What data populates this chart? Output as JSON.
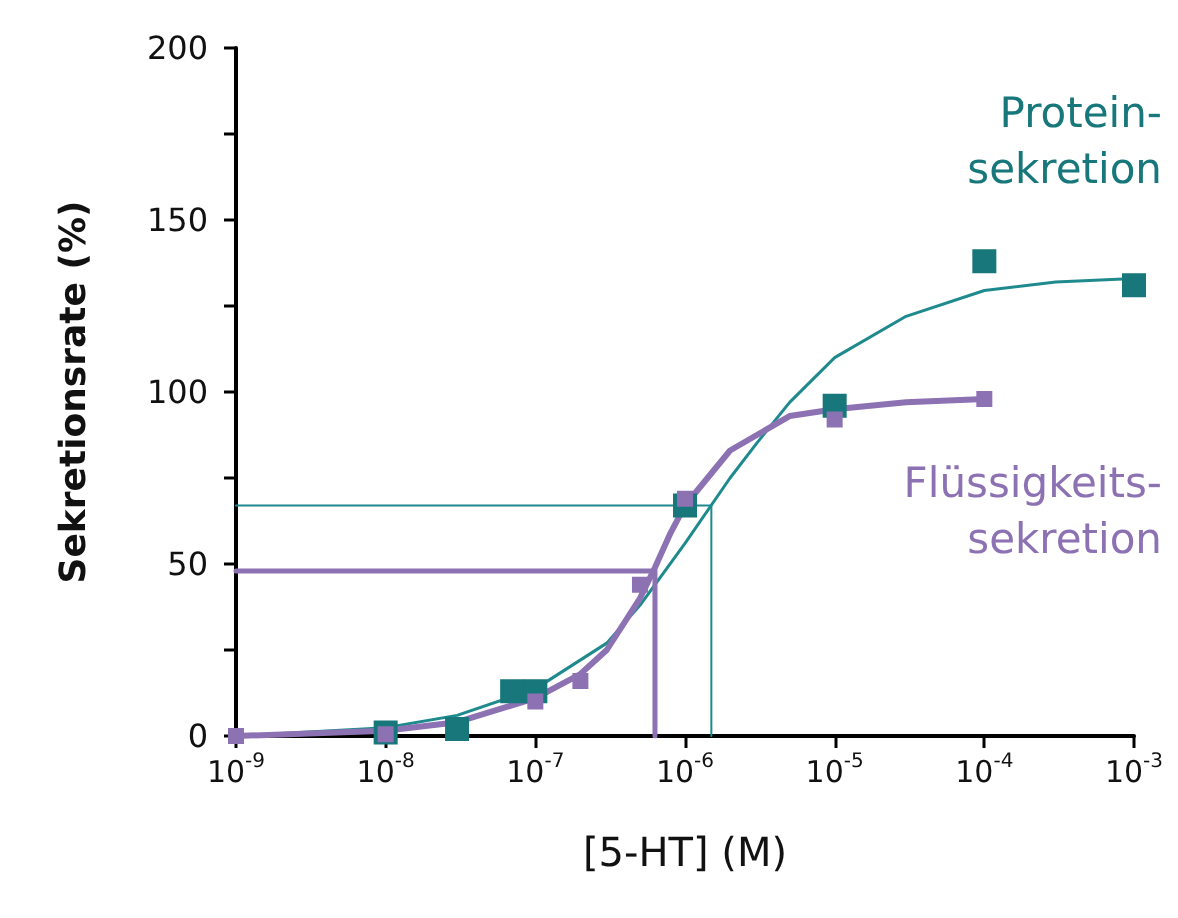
{
  "chart_data": {
    "type": "scatter",
    "xlabel": "[5-HT] (M)",
    "ylabel": "Sekretionsrate (%)",
    "log": "x",
    "grid": false,
    "legend": false,
    "xlim": [
      1e-09,
      0.001
    ],
    "xticks": [
      {
        "value": 1e-09,
        "label": "10$^{-9}$"
      },
      {
        "value": 1e-08,
        "label": "10$^{-8}$"
      },
      {
        "value": 1e-07,
        "label": "10$^{-7}$"
      },
      {
        "value": 1e-06,
        "label": "10$^{-6}$"
      },
      {
        "value": 1e-05,
        "label": "10$^{-5}$"
      },
      {
        "value": 0.0001,
        "label": "10$^{-4}$"
      },
      {
        "value": 0.001,
        "label": "10$^{-3}$"
      }
    ],
    "ylim": [
      0,
      200
    ],
    "yticks": [
      0,
      {
        "value": 25,
        "label": null
      },
      50,
      {
        "value": 75,
        "label": null
      },
      100,
      {
        "value": 125,
        "label": null
      },
      150,
      {
        "value": 175,
        "label": null
      },
      200
    ],
    "series": [
      {
        "name": "Protein-\nsekretion",
        "marker": "square",
        "color": "#17777b",
        "x": [
          1e-08,
          3e-08,
          7e-08,
          1e-07,
          1e-06,
          1e-05,
          0.0001,
          0.001
        ],
        "values": [
          1,
          2,
          13,
          13,
          67,
          96,
          138,
          131
        ]
      },
      {
        "type": "line",
        "marker": "none",
        "line_style": "solid",
        "color": "#1f8a8e",
        "x": [
          1e-09,
          1e-08,
          3e-08,
          1e-07,
          3e-07,
          5e-07,
          1e-06,
          2e-06,
          3e-06,
          5e-06,
          1e-05,
          3e-05,
          0.0001,
          0.0003,
          0.001
        ],
        "values": [
          0,
          2.4,
          6,
          13.7,
          27,
          38,
          56,
          75,
          85,
          97,
          110,
          122,
          129.5,
          132,
          133
        ]
      },
      {
        "name": "Flüssigkeits-\nsekretion",
        "marker": "square",
        "color": "#8d72b3",
        "x": [
          1e-09,
          1e-08,
          1e-07,
          2e-07,
          5e-07,
          1e-06,
          1e-05,
          0.0001
        ],
        "values": [
          0,
          0.5,
          10,
          16,
          44,
          69,
          92,
          98
        ]
      },
      {
        "type": "line",
        "marker": "none",
        "line_style": "solid",
        "color": "#8d72b3",
        "x": [
          1e-09,
          1e-08,
          3e-08,
          1e-07,
          2e-07,
          3e-07,
          5e-07,
          6.3e-07,
          8e-07,
          1e-06,
          2e-06,
          5e-06,
          1e-05,
          3e-05,
          0.0001
        ],
        "values": [
          0,
          1.5,
          4,
          11,
          18,
          25,
          40,
          49,
          59,
          67,
          83,
          93,
          95,
          97,
          98
        ]
      },
      {
        "type": "line",
        "marker": "none",
        "line_style": "solid",
        "color": "#1f8a8e",
        "x": [
          1e-09,
          1.5e-06,
          1.5e-06
        ],
        "values": [
          67,
          67,
          0
        ]
      },
      {
        "type": "line",
        "marker": "none",
        "line_style": "solid",
        "color": "#8d72b3",
        "x": [
          1e-09,
          6.3e-07,
          6.3e-07
        ],
        "values": [
          48,
          48,
          0
        ]
      }
    ]
  }
}
